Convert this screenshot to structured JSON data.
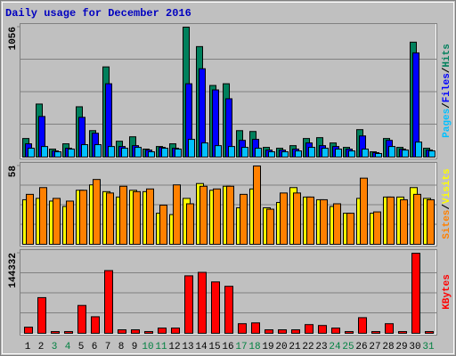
{
  "chart_data": [
    {
      "type": "bar",
      "title": "Daily usage for December 2016",
      "ylim": [
        0,
        1056
      ],
      "yticks": [
        1056
      ],
      "grid_divisions": 4,
      "legend_separator": "/",
      "series": [
        {
          "name": "Hits",
          "color": "#00805c",
          "values": [
            151,
            431,
            65,
            108,
            409,
            215,
            733,
            129,
            165,
            65,
            86,
            108,
            1056,
            898,
            582,
            596,
            215,
            208,
            79,
            72,
            93,
            151,
            158,
            115,
            79,
            223,
            43,
            151,
            79,
            934,
            72
          ]
        },
        {
          "name": "Files",
          "color": "#0000ff",
          "values": [
            108,
            330,
            50,
            72,
            323,
            194,
            596,
            86,
            93,
            57,
            79,
            72,
            596,
            718,
            546,
            474,
            136,
            144,
            57,
            57,
            65,
            115,
            93,
            86,
            65,
            172,
            36,
            136,
            65,
            847,
            57
          ]
        },
        {
          "name": "Pages",
          "color": "#00c0ff",
          "values": [
            72,
            86,
            43,
            65,
            101,
            101,
            86,
            72,
            79,
            43,
            72,
            65,
            144,
            115,
            93,
            86,
            79,
            72,
            43,
            43,
            50,
            79,
            72,
            65,
            50,
            65,
            29,
            86,
            57,
            122,
            50
          ]
        }
      ]
    },
    {
      "type": "bar",
      "ylim": [
        0,
        58
      ],
      "yticks": [
        58
      ],
      "grid_divisions": 4,
      "legend_separator": "/",
      "series": [
        {
          "name": "Visits",
          "color": "#ffff00",
          "values": [
            33,
            34,
            32,
            28,
            40,
            44,
            39,
            35,
            40,
            39,
            23,
            22,
            34,
            45,
            40,
            43,
            27,
            41,
            27,
            31,
            42,
            35,
            33,
            28,
            23,
            34,
            23,
            35,
            35,
            42,
            34
          ]
        },
        {
          "name": "Sites",
          "color": "#ff8000",
          "values": [
            37,
            42,
            34,
            32,
            40,
            48,
            38,
            43,
            39,
            41,
            29,
            44,
            30,
            43,
            41,
            43,
            37,
            58,
            26,
            38,
            38,
            35,
            33,
            30,
            23,
            49,
            24,
            35,
            33,
            37,
            33
          ]
        }
      ]
    },
    {
      "type": "bar",
      "ylim": [
        0,
        144332
      ],
      "yticks": [
        144332
      ],
      "grid_divisions": 4,
      "categories": [
        "1",
        "2",
        "3",
        "4",
        "5",
        "6",
        "7",
        "8",
        "9",
        "10",
        "11",
        "12",
        "13",
        "14",
        "15",
        "16",
        "17",
        "18",
        "19",
        "20",
        "21",
        "22",
        "23",
        "24",
        "25",
        "26",
        "27",
        "28",
        "29",
        "30",
        "31"
      ],
      "category_colors": [
        "#000000",
        "#000000",
        "#008040",
        "#008040",
        "#000000",
        "#000000",
        "#000000",
        "#000000",
        "#000000",
        "#008040",
        "#008040",
        "#000000",
        "#000000",
        "#000000",
        "#000000",
        "#000000",
        "#008040",
        "#008040",
        "#000000",
        "#000000",
        "#000000",
        "#000000",
        "#000000",
        "#008040",
        "#008040",
        "#000000",
        "#000000",
        "#000000",
        "#000000",
        "#000000",
        "#008040"
      ],
      "series": [
        {
          "name": "KBytes",
          "color": "#ff0000",
          "values": [
            11000,
            64300,
            3100,
            3100,
            50200,
            29800,
            113000,
            6300,
            6300,
            3100,
            9400,
            9400,
            103600,
            109800,
            92600,
            84700,
            17300,
            18800,
            6300,
            6300,
            6300,
            15700,
            14100,
            9400,
            3100,
            28200,
            3100,
            17300,
            3100,
            144332,
            3100
          ]
        }
      ]
    }
  ]
}
